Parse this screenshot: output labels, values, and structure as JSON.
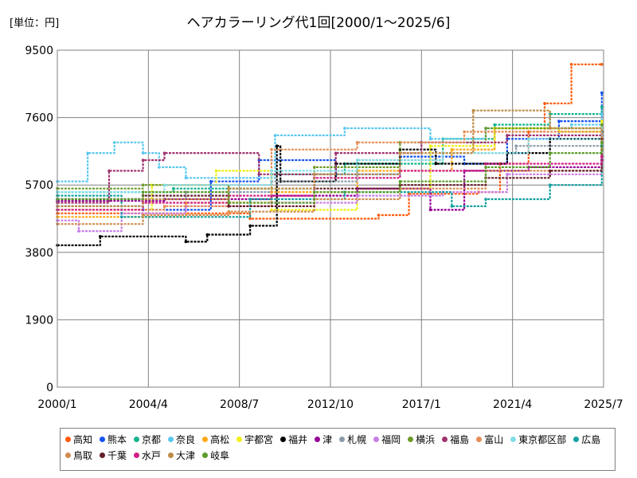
{
  "unit_label": "[単位：円]",
  "chart_data": {
    "type": "line",
    "title": "ヘアカラーリング代1回[2000/1～2025/6]",
    "xlabel": "",
    "ylabel": "",
    "x_ticks": [
      "2000/1",
      "2004/4",
      "2008/7",
      "2012/10",
      "2017/1",
      "2021/4",
      "2025/7"
    ],
    "y_ticks": [
      0,
      1900,
      3800,
      5700,
      7600,
      9500
    ],
    "ylim": [
      0,
      9500
    ],
    "xlim": [
      "2000/1",
      "2025/7"
    ],
    "grid": true,
    "legend_position": "bottom",
    "series": [
      {
        "name": "高知",
        "color": "#FF5A0A",
        "points": [
          [
            "2000/1",
            4900
          ],
          [
            "2009/1",
            4750
          ],
          [
            "2015/1",
            4850
          ],
          [
            "2016/6",
            5450
          ],
          [
            "2019/9",
            5500
          ],
          [
            "2020/9",
            6300
          ],
          [
            "2022/1",
            7200
          ],
          [
            "2022/10",
            8000
          ],
          [
            "2024/1",
            9100
          ],
          [
            "2025/6",
            9100
          ]
        ]
      },
      {
        "name": "熊本",
        "color": "#1452F0",
        "points": [
          [
            "2000/1",
            5100
          ],
          [
            "2004/1",
            5000
          ],
          [
            "2007/3",
            5800
          ],
          [
            "2009/6",
            6400
          ],
          [
            "2013/1",
            6000
          ],
          [
            "2016/1",
            6500
          ],
          [
            "2019/1",
            6300
          ],
          [
            "2021/1",
            7000
          ],
          [
            "2023/6",
            7500
          ],
          [
            "2025/6",
            8300
          ]
        ]
      },
      {
        "name": "京都",
        "color": "#14B48C",
        "points": [
          [
            "2000/1",
            5500
          ],
          [
            "2005/6",
            5600
          ],
          [
            "2010/1",
            6000
          ],
          [
            "2013/6",
            6300
          ],
          [
            "2018/1",
            7000
          ],
          [
            "2020/6",
            7400
          ],
          [
            "2023/1",
            7700
          ],
          [
            "2025/6",
            7900
          ]
        ]
      },
      {
        "name": "奈良",
        "color": "#5AC8F0",
        "points": [
          [
            "2000/1",
            5800
          ],
          [
            "2001/6",
            6600
          ],
          [
            "2002/9",
            6900
          ],
          [
            "2004/1",
            6600
          ],
          [
            "2004/10",
            6200
          ],
          [
            "2006/1",
            5900
          ],
          [
            "2010/3",
            7100
          ],
          [
            "2013/6",
            7300
          ],
          [
            "2017/6",
            7000
          ],
          [
            "2020/1",
            7300
          ],
          [
            "2024/1",
            7400
          ],
          [
            "2025/6",
            7700
          ]
        ]
      },
      {
        "name": "高松",
        "color": "#FFA814",
        "points": [
          [
            "2000/1",
            4800
          ],
          [
            "2006/1",
            5200
          ],
          [
            "2010/1",
            5500
          ],
          [
            "2014/1",
            6100
          ],
          [
            "2018/6",
            6700
          ],
          [
            "2020/6",
            7300
          ],
          [
            "2025/6",
            7300
          ]
        ]
      },
      {
        "name": "宇都宮",
        "color": "#F0F014",
        "points": [
          [
            "2000/1",
            5000
          ],
          [
            "2004/6",
            5700
          ],
          [
            "2007/6",
            6100
          ],
          [
            "2010/1",
            5000
          ],
          [
            "2014/1",
            5600
          ],
          [
            "2017/6",
            6800
          ],
          [
            "2020/6",
            7300
          ],
          [
            "2023/6",
            7200
          ],
          [
            "2025/6",
            7500
          ]
        ]
      },
      {
        "name": "福井",
        "color": "#000000",
        "points": [
          [
            "2000/1",
            4000
          ],
          [
            "2002/1",
            4250
          ],
          [
            "2006/1",
            4100
          ],
          [
            "2007/1",
            4300
          ],
          [
            "2009/1",
            4550
          ],
          [
            "2010/4",
            6800
          ],
          [
            "2010/6",
            5800
          ],
          [
            "2013/1",
            6300
          ],
          [
            "2016/1",
            6700
          ],
          [
            "2017/9",
            6300
          ],
          [
            "2021/1",
            6600
          ],
          [
            "2023/1",
            7000
          ],
          [
            "2025/6",
            7200
          ]
        ]
      },
      {
        "name": "津",
        "color": "#960096",
        "points": [
          [
            "2000/1",
            5250
          ],
          [
            "2005/1",
            5300
          ],
          [
            "2010/1",
            5400
          ],
          [
            "2014/1",
            5600
          ],
          [
            "2017/6",
            5000
          ],
          [
            "2019/1",
            6100
          ],
          [
            "2022/1",
            6200
          ],
          [
            "2025/6",
            6400
          ]
        ]
      },
      {
        "name": "札幌",
        "color": "#8C9BAA",
        "points": [
          [
            "2000/1",
            5300
          ],
          [
            "2006/1",
            5500
          ],
          [
            "2010/1",
            5800
          ],
          [
            "2014/1",
            6400
          ],
          [
            "2018/1",
            6600
          ],
          [
            "2021/6",
            6800
          ],
          [
            "2025/6",
            7000
          ]
        ]
      },
      {
        "name": "福岡",
        "color": "#C87DE6",
        "points": [
          [
            "2000/1",
            4700
          ],
          [
            "2001/1",
            4400
          ],
          [
            "2003/1",
            4900
          ],
          [
            "2006/1",
            5100
          ],
          [
            "2010/1",
            5200
          ],
          [
            "2014/1",
            5400
          ],
          [
            "2018/1",
            5500
          ],
          [
            "2021/1",
            6000
          ],
          [
            "2025/6",
            6500
          ]
        ]
      },
      {
        "name": "横浜",
        "color": "#6E9B28",
        "points": [
          [
            "2000/1",
            5600
          ],
          [
            "2004/1",
            5700
          ],
          [
            "2008/1",
            5600
          ],
          [
            "2012/1",
            6200
          ],
          [
            "2016/1",
            6900
          ],
          [
            "2020/1",
            7300
          ],
          [
            "2025/6",
            7400
          ]
        ]
      },
      {
        "name": "福島",
        "color": "#A0326E",
        "points": [
          [
            "2000/1",
            5200
          ],
          [
            "2002/6",
            6100
          ],
          [
            "2004/1",
            6400
          ],
          [
            "2005/1",
            6600
          ],
          [
            "2009/6",
            6000
          ],
          [
            "2013/1",
            6600
          ],
          [
            "2017/1",
            6900
          ],
          [
            "2021/1",
            7100
          ],
          [
            "2025/6",
            7100
          ]
        ]
      },
      {
        "name": "富山",
        "color": "#E68C55",
        "points": [
          [
            "2000/1",
            5000
          ],
          [
            "2005/1",
            5100
          ],
          [
            "2010/1",
            6700
          ],
          [
            "2014/1",
            6900
          ],
          [
            "2019/1",
            7200
          ],
          [
            "2025/6",
            7000
          ]
        ]
      },
      {
        "name": "東京都区部",
        "color": "#82DCE6",
        "points": [
          [
            "2000/1",
            5500
          ],
          [
            "2005/1",
            5700
          ],
          [
            "2010/1",
            6100
          ],
          [
            "2014/1",
            6400
          ],
          [
            "2018/1",
            6600
          ],
          [
            "2022/1",
            7000
          ],
          [
            "2025/6",
            7300
          ]
        ]
      },
      {
        "name": "広島",
        "color": "#14A0A0",
        "points": [
          [
            "2000/1",
            5400
          ],
          [
            "2003/1",
            4800
          ],
          [
            "2009/1",
            5300
          ],
          [
            "2013/6",
            5500
          ],
          [
            "2018/6",
            5100
          ],
          [
            "2020/1",
            5300
          ],
          [
            "2023/1",
            5700
          ],
          [
            "2025/6",
            6800
          ]
        ]
      },
      {
        "name": "鳥取",
        "color": "#D28C50",
        "points": [
          [
            "2000/1",
            4600
          ],
          [
            "2004/1",
            4850
          ],
          [
            "2008/1",
            4950
          ],
          [
            "2012/1",
            5300
          ],
          [
            "2016/1",
            5600
          ],
          [
            "2020/1",
            6100
          ],
          [
            "2025/6",
            6700
          ]
        ]
      },
      {
        "name": "千葉",
        "color": "#641E28",
        "points": [
          [
            "2000/1",
            5300
          ],
          [
            "2004/1",
            5400
          ],
          [
            "2008/1",
            5100
          ],
          [
            "2012/1",
            5600
          ],
          [
            "2016/1",
            5700
          ],
          [
            "2020/1",
            5900
          ],
          [
            "2023/1",
            6100
          ],
          [
            "2025/6",
            7000
          ]
        ]
      },
      {
        "name": "水戸",
        "color": "#D21E82",
        "points": [
          [
            "2000/1",
            5000
          ],
          [
            "2004/1",
            5200
          ],
          [
            "2008/1",
            5400
          ],
          [
            "2012/1",
            5900
          ],
          [
            "2016/1",
            6100
          ],
          [
            "2020/1",
            6300
          ],
          [
            "2025/6",
            6500
          ]
        ]
      },
      {
        "name": "大津",
        "color": "#BE8C46",
        "points": [
          [
            "2000/1",
            5100
          ],
          [
            "2004/1",
            5300
          ],
          [
            "2008/1",
            5600
          ],
          [
            "2012/1",
            6000
          ],
          [
            "2016/1",
            6600
          ],
          [
            "2019/6",
            7800
          ],
          [
            "2023/1",
            7300
          ],
          [
            "2025/6",
            6900
          ]
        ]
      },
      {
        "name": "岐阜",
        "color": "#5A9B28",
        "points": [
          [
            "2000/1",
            5300
          ],
          [
            "2004/1",
            5500
          ],
          [
            "2008/1",
            5200
          ],
          [
            "2012/1",
            5500
          ],
          [
            "2016/1",
            5800
          ],
          [
            "2020/1",
            6200
          ],
          [
            "2023/1",
            6600
          ],
          [
            "2025/6",
            6900
          ]
        ]
      }
    ]
  }
}
